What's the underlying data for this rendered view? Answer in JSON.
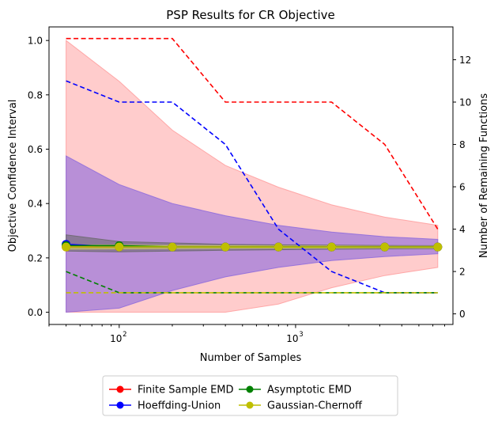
{
  "chart_data": {
    "type": "line",
    "title": "PSP Results for CR Objective",
    "xlabel": "Number of Samples",
    "ylabel": "Objective Confidence Interval",
    "y2label": "Number of Remaining Functions",
    "xscale": "log",
    "xlim": [
      40,
      7800
    ],
    "ylim": [
      -0.045,
      1.05
    ],
    "y2lim": [
      -0.5,
      13.55
    ],
    "x_ticks": [
      {
        "value": 100,
        "label": "10",
        "exp": "2"
      },
      {
        "value": 1000,
        "label": "10",
        "exp": "3"
      }
    ],
    "y_ticks": [
      0.0,
      0.2,
      0.4,
      0.6,
      0.8,
      1.0
    ],
    "y_tick_labels": [
      "0.0",
      "0.2",
      "0.4",
      "0.6",
      "0.8",
      "1.0"
    ],
    "y2_ticks": [
      0,
      2,
      4,
      6,
      8,
      10,
      12
    ],
    "y2_tick_labels": [
      "0",
      "2",
      "4",
      "6",
      "8",
      "10",
      "12"
    ],
    "x": [
      50,
      100,
      200,
      400,
      800,
      1600,
      3200,
      6400
    ],
    "colors": {
      "finite": "#ff0000",
      "hoeffding": "#0000ff",
      "asymptotic": "#008000",
      "gaussian": "#bfbf00",
      "finite_band": "#ff9999",
      "hoeffding_band": "#8866dd",
      "asymptotic_band": "#666666",
      "gaussian_band": "#cccc55"
    },
    "series": [
      {
        "name": "Finite Sample EMD",
        "color_key": "finite",
        "mean": [
          0.24,
          0.24,
          0.24,
          0.24,
          0.24,
          0.24,
          0.24,
          0.24
        ],
        "lower": [
          0.0,
          0.0,
          0.0,
          0.0,
          0.03,
          0.09,
          0.135,
          0.165
        ],
        "upper": [
          1.0,
          0.85,
          0.67,
          0.54,
          0.46,
          0.395,
          0.35,
          0.32
        ],
        "remaining": [
          13,
          13,
          13,
          10,
          10,
          10,
          8,
          4
        ]
      },
      {
        "name": "Hoeffding-Union",
        "color_key": "hoeffding",
        "mean": [
          0.25,
          0.24,
          0.24,
          0.24,
          0.24,
          0.24,
          0.24,
          0.24
        ],
        "lower": [
          0.0,
          0.015,
          0.08,
          0.13,
          0.165,
          0.19,
          0.205,
          0.215
        ],
        "upper": [
          0.575,
          0.47,
          0.4,
          0.355,
          0.32,
          0.295,
          0.278,
          0.268
        ],
        "remaining": [
          11,
          10,
          10,
          8,
          4,
          2,
          1,
          1
        ]
      },
      {
        "name": "Asymptotic EMD",
        "color_key": "asymptotic",
        "mean": [
          0.245,
          0.245,
          0.24,
          0.24,
          0.24,
          0.24,
          0.24,
          0.24
        ],
        "lower": [
          0.225,
          0.222,
          0.225,
          0.228,
          0.23,
          0.232,
          0.233,
          0.234
        ],
        "upper": [
          0.285,
          0.26,
          0.255,
          0.25,
          0.248,
          0.247,
          0.246,
          0.245
        ],
        "remaining": [
          2,
          1,
          1,
          1,
          1,
          1,
          1,
          1
        ]
      },
      {
        "name": "Gaussian-Chernoff",
        "color_key": "gaussian",
        "mean": [
          0.24,
          0.24,
          0.24,
          0.24,
          0.24,
          0.24,
          0.24,
          0.24
        ],
        "lower": [
          0.232,
          0.233,
          0.234,
          0.235,
          0.236,
          0.236,
          0.237,
          0.237
        ],
        "upper": [
          0.248,
          0.247,
          0.246,
          0.245,
          0.244,
          0.244,
          0.243,
          0.243
        ],
        "remaining": [
          1,
          1,
          1,
          1,
          1,
          1,
          1,
          1
        ]
      }
    ],
    "legend": {
      "placement": "bottom-center",
      "ncol": 2
    }
  }
}
